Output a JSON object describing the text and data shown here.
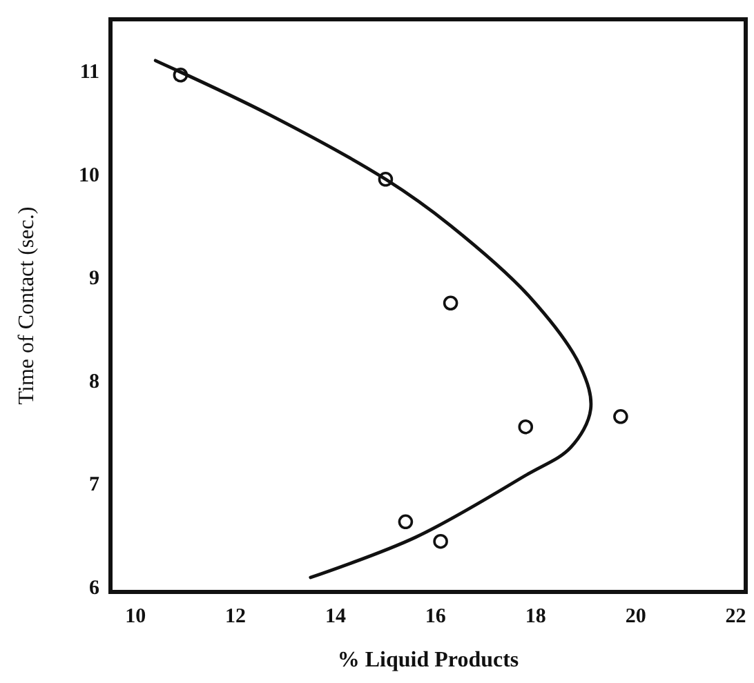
{
  "chart_data": {
    "type": "scatter",
    "xlabel": "% Liquid Products",
    "ylabel": "Time of Contact (sec.)",
    "xlim": [
      9.5,
      22.2
    ],
    "ylim": [
      5.95,
      11.5
    ],
    "xticks": [
      10,
      12,
      14,
      16,
      18,
      20,
      22
    ],
    "yticks": [
      6,
      7,
      8,
      9,
      10,
      11
    ],
    "grid": false,
    "series": [
      {
        "color": "#111111",
        "marker": "circle",
        "x": [
          10.9,
          15.0,
          16.3,
          17.8,
          19.7,
          15.4,
          16.1
        ],
        "values": [
          10.96,
          9.95,
          8.75,
          7.55,
          7.65,
          6.63,
          6.44
        ]
      },
      {
        "type": "line",
        "color": "#111111",
        "line_style": "solid",
        "x": [
          10.4,
          12.7,
          15.0,
          16.3,
          17.9,
          18.9,
          19.1,
          18.7,
          17.8,
          15.6,
          13.5
        ],
        "values": [
          11.1,
          10.57,
          9.95,
          9.5,
          8.8,
          8.13,
          7.72,
          7.35,
          7.08,
          6.48,
          6.09
        ]
      }
    ]
  }
}
